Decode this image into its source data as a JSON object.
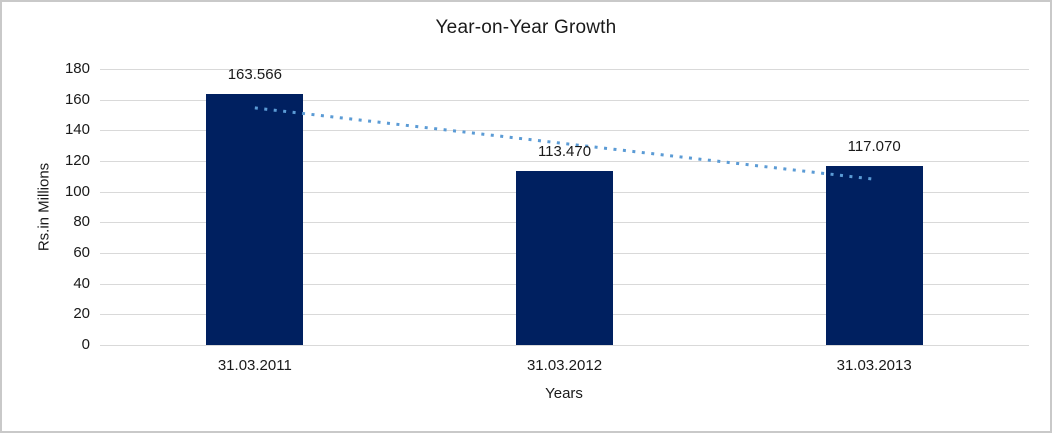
{
  "chart_data": {
    "type": "bar",
    "title": "Year-on-Year Growth",
    "xlabel": "Years",
    "ylabel": "Rs.in Millions",
    "categories": [
      "31.03.2011",
      "31.03.2012",
      "31.03.2013"
    ],
    "values": [
      163.566,
      113.47,
      117.07
    ],
    "data_labels": [
      "163.566",
      "113.470",
      "117.070"
    ],
    "ylim": [
      0,
      180
    ],
    "ytick_labels": [
      "0",
      "20",
      "40",
      "60",
      "80",
      "100",
      "120",
      "140",
      "160",
      "180"
    ],
    "grid": true,
    "legend": "none",
    "trendline": {
      "kind": "linear",
      "style": "dotted",
      "fitted_values": [
        154.617,
        131.369,
        108.121
      ]
    },
    "colors": {
      "bar": "#002060",
      "trendline": "#5B9BD5",
      "gridline": "#d9d9d9",
      "text": "#1a1a1a",
      "background": "#ffffff",
      "border": "#c9c9c9"
    }
  }
}
